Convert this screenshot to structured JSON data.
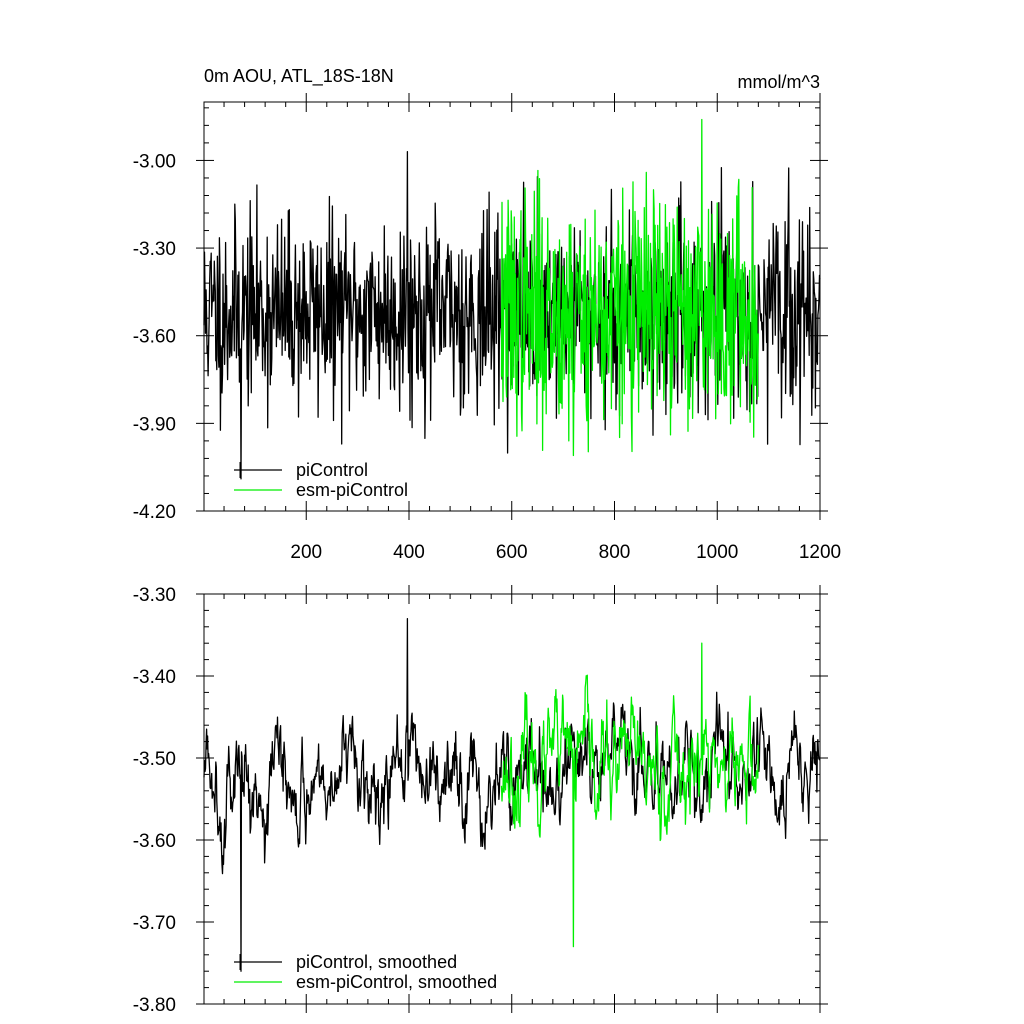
{
  "colors": {
    "control": "#000000",
    "esm": "#00ee00",
    "axis": "#000000"
  },
  "chart_data": [
    {
      "type": "line",
      "title": "0m AOU, ATL_18S-18N",
      "units": "mmol/m^3",
      "xlim": [
        1,
        1200
      ],
      "ylim": [
        -4.2,
        -2.8
      ],
      "x_ticks": [
        200,
        400,
        600,
        800,
        1000,
        1200
      ],
      "x_tick_labels": [
        "200",
        "400",
        "600",
        "800",
        "1000",
        "1200"
      ],
      "y_ticks": [
        -4.2,
        -3.9,
        -3.6,
        -3.3,
        -3.0
      ],
      "y_tick_labels": [
        "-4.20",
        "-3.90",
        "-3.60",
        "-3.30",
        "-3.00"
      ],
      "series": [
        {
          "name": "piControl",
          "x_range": [
            1,
            1200
          ],
          "mean": -3.52,
          "noise_sd": 0.16,
          "min": -4.09,
          "max": -2.97,
          "seed": 11
        },
        {
          "name": "esm-piControl",
          "x_range": [
            580,
            1080
          ],
          "mean": -3.52,
          "noise_sd": 0.2,
          "min": -4.01,
          "max": -2.86,
          "seed": 37
        }
      ],
      "legend_position": "bottom-left"
    },
    {
      "type": "line",
      "title": "",
      "xlim": [
        1,
        1200
      ],
      "ylim": [
        -3.8,
        -3.3
      ],
      "x_ticks": [
        200,
        400,
        600,
        800,
        1000,
        1200
      ],
      "y_ticks": [
        -3.8,
        -3.7,
        -3.6,
        -3.5,
        -3.4,
        -3.3
      ],
      "y_tick_labels": [
        "-3.80",
        "-3.70",
        "-3.60",
        "-3.50",
        "-3.40",
        "-3.30"
      ],
      "series": [
        {
          "name": "piControl, smoothed",
          "x_range": [
            1,
            1200
          ],
          "mean": -3.52,
          "noise_sd": 0.045,
          "min": -3.76,
          "max": -3.33,
          "seed": 5
        },
        {
          "name": "esm-piControl, smoothed",
          "x_range": [
            580,
            1080
          ],
          "mean": -3.51,
          "noise_sd": 0.05,
          "min": -3.73,
          "max": -3.36,
          "seed": 23
        }
      ],
      "legend_position": "bottom-left"
    }
  ]
}
